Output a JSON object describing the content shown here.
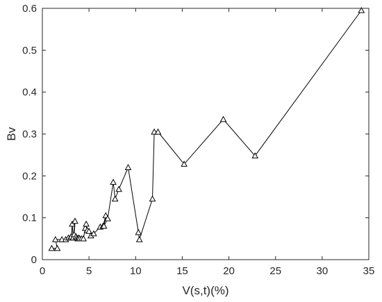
{
  "chart_data": {
    "type": "line",
    "xlabel": "V(s,t)(%)",
    "ylabel": "Bv",
    "xlim": [
      0,
      35
    ],
    "ylim": [
      0,
      0.6
    ],
    "xticks": [
      "0",
      "5",
      "10",
      "15",
      "20",
      "25",
      "30",
      "35"
    ],
    "yticks": [
      "0",
      "0.1",
      "0.2",
      "0.3",
      "0.4",
      "0.5",
      "0.6"
    ],
    "grid": false,
    "marker": "open-triangle",
    "series": [
      {
        "x": [
          1.0,
          1.6,
          1.4,
          2.1,
          2.5,
          2.8,
          3.0,
          3.1,
          3.2,
          3.3,
          3.5,
          3.4,
          3.6,
          3.7,
          3.8,
          3.9,
          4.0,
          4.2,
          4.4,
          4.6,
          4.7,
          4.8,
          5.0,
          5.2,
          5.5,
          6.2,
          6.5,
          6.8,
          6.6,
          7.0,
          7.6,
          7.8,
          8.2,
          9.2,
          10.3,
          10.4,
          11.8,
          12.0,
          12.4,
          15.2,
          19.4,
          22.8,
          34.2
        ],
        "y": [
          0.027,
          0.027,
          0.048,
          0.048,
          0.048,
          0.052,
          0.052,
          0.055,
          0.085,
          0.052,
          0.092,
          0.06,
          0.055,
          0.052,
          0.05,
          0.052,
          0.05,
          0.05,
          0.05,
          0.075,
          0.085,
          0.07,
          0.068,
          0.057,
          0.062,
          0.078,
          0.08,
          0.105,
          0.08,
          0.098,
          0.185,
          0.145,
          0.168,
          0.22,
          0.065,
          0.048,
          0.145,
          0.305,
          0.305,
          0.228,
          0.335,
          0.248,
          0.595
        ]
      }
    ]
  }
}
